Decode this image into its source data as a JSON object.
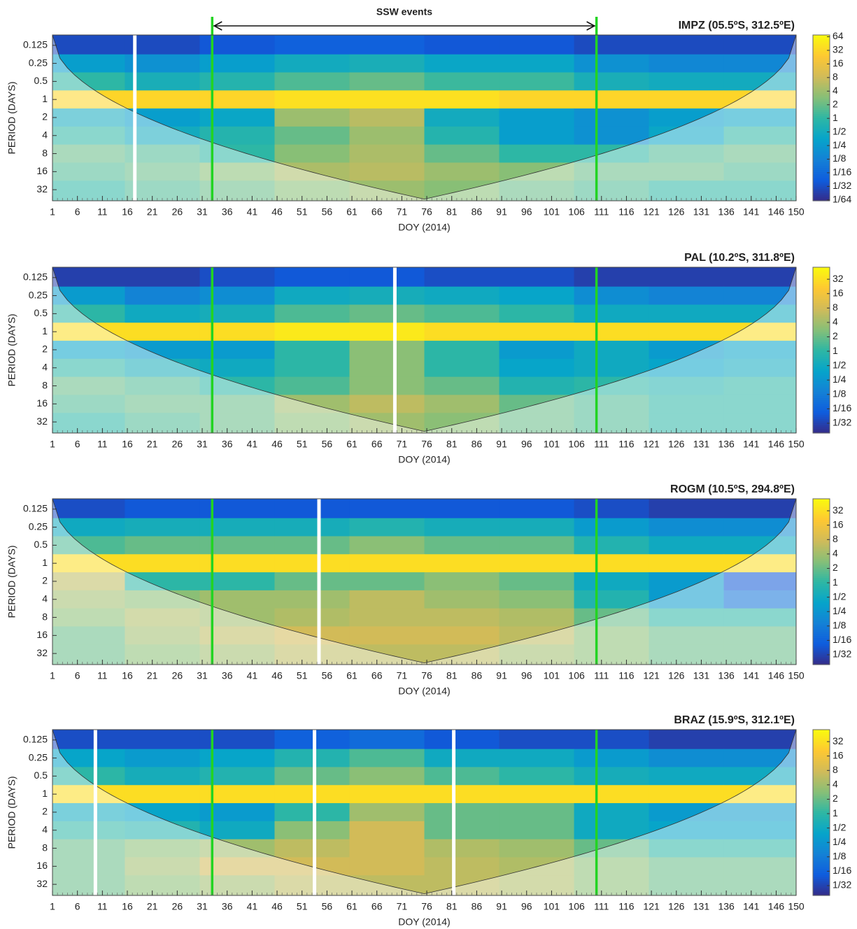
{
  "chart_data": [
    {
      "type": "heatmap",
      "title": "IMPZ (05.5ºS, 312.5ºE)",
      "annotation": "SSW events",
      "x_label": "DOY (2014)",
      "y_label": "PERIOD (DAYS)",
      "x": [
        8,
        23,
        38,
        53,
        68,
        83,
        98,
        113,
        128,
        143
      ],
      "y": [
        0.125,
        0.25,
        0.5,
        1,
        2,
        4,
        8,
        16,
        32
      ],
      "z": [
        [
          0.03,
          0.03,
          0.04,
          0.05,
          0.05,
          0.04,
          0.04,
          0.03,
          0.03,
          0.03
        ],
        [
          0.3,
          0.2,
          0.3,
          0.5,
          0.6,
          0.4,
          0.4,
          0.2,
          0.15,
          0.15
        ],
        [
          1,
          0.6,
          0.8,
          1.5,
          2,
          1.2,
          1.2,
          0.6,
          0.5,
          0.5
        ],
        [
          32,
          32,
          32,
          40,
          40,
          40,
          32,
          32,
          32,
          32
        ],
        [
          0.5,
          0.3,
          0.4,
          4,
          6,
          0.5,
          0.3,
          0.2,
          0.3,
          0.4
        ],
        [
          1,
          0.5,
          0.8,
          2,
          4,
          0.8,
          0.3,
          0.2,
          0.4,
          1
        ],
        [
          2,
          1.5,
          1,
          3,
          5,
          2,
          1,
          1,
          1.5,
          2
        ],
        [
          1.5,
          2,
          3,
          5,
          6,
          4,
          3,
          2,
          2,
          1.5
        ],
        [
          1,
          1.5,
          2,
          3,
          4,
          3,
          2,
          1.5,
          1,
          1
        ]
      ],
      "xlim": [
        1,
        150
      ],
      "xticks": [
        1,
        6,
        11,
        16,
        21,
        26,
        31,
        36,
        41,
        46,
        51,
        56,
        61,
        66,
        71,
        76,
        81,
        86,
        91,
        96,
        101,
        106,
        111,
        116,
        121,
        126,
        131,
        136,
        141,
        146,
        150
      ],
      "ylim": [
        0.084,
        49
      ],
      "yticks": [
        0.125,
        0.25,
        0.5,
        1,
        2,
        4,
        8,
        16,
        32
      ],
      "y_log": true,
      "y_reversed": true,
      "clim": [
        0.015,
        70
      ],
      "cticks": [
        64,
        32,
        16,
        8,
        4,
        2,
        1,
        {
          "value": 0.5,
          "label": "1/2"
        },
        {
          "value": 0.25,
          "label": "1/4"
        },
        {
          "value": 0.125,
          "label": "1/8"
        },
        {
          "value": 0.0625,
          "label": "1/16"
        },
        {
          "value": 0.03125,
          "label": "1/32"
        },
        {
          "value": 0.015625,
          "label": "1/64"
        }
      ],
      "colormap": [
        "#352a87",
        "#0f5cdd",
        "#1481d6",
        "#06a4ca",
        "#2eb7a4",
        "#87bf77",
        "#d1bb59",
        "#fec832",
        "#f9fb0e"
      ],
      "event_lines": [
        33,
        110
      ],
      "event_line_color": "#22d422",
      "data_gaps": [
        17.5
      ]
    },
    {
      "type": "heatmap",
      "title": "PAL (10.2ºS, 311.8ºE)",
      "x_label": "DOY (2014)",
      "y_label": "PERIOD (DAYS)",
      "x": [
        8,
        23,
        38,
        53,
        68,
        83,
        98,
        113,
        128,
        143
      ],
      "y": [
        0.125,
        0.25,
        0.5,
        1,
        2,
        4,
        8,
        16,
        32
      ],
      "z": [
        [
          0.03,
          0.03,
          0.04,
          0.05,
          0.05,
          0.04,
          0.04,
          0.03,
          0.03,
          0.03
        ],
        [
          0.3,
          0.15,
          0.2,
          0.5,
          0.6,
          0.5,
          0.4,
          0.2,
          0.15,
          0.15
        ],
        [
          1,
          0.5,
          0.6,
          1.5,
          2,
          1.5,
          1,
          0.5,
          0.5,
          0.5
        ],
        [
          32,
          32,
          32,
          40,
          40,
          32,
          32,
          32,
          32,
          32
        ],
        [
          0.4,
          0.3,
          0.3,
          1,
          3,
          1,
          0.3,
          0.5,
          0.3,
          0.4
        ],
        [
          1,
          0.6,
          0.5,
          1,
          3,
          1,
          0.4,
          0.5,
          0.4,
          0.5
        ],
        [
          2,
          1.5,
          1,
          1.5,
          3,
          2,
          0.8,
          1,
          0.8,
          1
        ],
        [
          1.5,
          2,
          2,
          4,
          6,
          4,
          2,
          1.5,
          1,
          1
        ],
        [
          1,
          1.5,
          2,
          3,
          4,
          3,
          2,
          1.5,
          1,
          1
        ]
      ],
      "xlim": [
        1,
        150
      ],
      "xticks": [
        1,
        6,
        11,
        16,
        21,
        26,
        31,
        36,
        41,
        46,
        51,
        56,
        61,
        66,
        71,
        76,
        81,
        86,
        91,
        96,
        101,
        106,
        111,
        116,
        121,
        126,
        131,
        136,
        141,
        146,
        150
      ],
      "ylim": [
        0.084,
        49
      ],
      "yticks": [
        0.125,
        0.25,
        0.5,
        1,
        2,
        4,
        8,
        16,
        32
      ],
      "y_log": true,
      "y_reversed": true,
      "clim": [
        0.0195,
        57
      ],
      "cticks": [
        32,
        16,
        8,
        4,
        2,
        1,
        {
          "value": 0.5,
          "label": "1/2"
        },
        {
          "value": 0.25,
          "label": "1/4"
        },
        {
          "value": 0.125,
          "label": "1/8"
        },
        {
          "value": 0.0625,
          "label": "1/16"
        },
        {
          "value": 0.03125,
          "label": "1/32"
        }
      ],
      "colormap": [
        "#352a87",
        "#0f5cdd",
        "#1481d6",
        "#06a4ca",
        "#2eb7a4",
        "#87bf77",
        "#d1bb59",
        "#fec832",
        "#f9fb0e"
      ],
      "event_lines": [
        33,
        110
      ],
      "event_line_color": "#22d422",
      "data_gaps": [
        69.6
      ]
    },
    {
      "type": "heatmap",
      "title": "ROGM (10.5ºS, 294.8ºE)",
      "x_label": "DOY (2014)",
      "y_label": "PERIOD (DAYS)",
      "x": [
        8,
        23,
        38,
        53,
        68,
        83,
        98,
        113,
        128,
        143
      ],
      "y": [
        0.125,
        0.25,
        0.5,
        1,
        2,
        4,
        8,
        16,
        32
      ],
      "z": [
        [
          0.04,
          0.05,
          0.05,
          0.05,
          0.05,
          0.05,
          0.05,
          0.04,
          0.03,
          0.03
        ],
        [
          0.5,
          0.6,
          0.6,
          0.6,
          0.8,
          0.6,
          0.6,
          0.3,
          0.2,
          0.2
        ],
        [
          1.5,
          2,
          2,
          2,
          3,
          2,
          2,
          0.8,
          0.5,
          0.5
        ],
        [
          32,
          32,
          32,
          32,
          32,
          32,
          32,
          32,
          32,
          32
        ],
        [
          6,
          1,
          1,
          2,
          2,
          3,
          2,
          0.5,
          0.3,
          0.05
        ],
        [
          4,
          3,
          4,
          4,
          6,
          4,
          3,
          0.8,
          0.3,
          0.1
        ],
        [
          3,
          5,
          4,
          5,
          6,
          6,
          5,
          2,
          1,
          1
        ],
        [
          2,
          4,
          6,
          8,
          8,
          8,
          6,
          3,
          2,
          2
        ],
        [
          2,
          3,
          4,
          6,
          6,
          6,
          4,
          3,
          2,
          2
        ]
      ],
      "xlim": [
        1,
        150
      ],
      "xticks": [
        1,
        6,
        11,
        16,
        21,
        26,
        31,
        36,
        41,
        46,
        51,
        56,
        61,
        66,
        71,
        76,
        81,
        86,
        91,
        96,
        101,
        106,
        111,
        116,
        121,
        126,
        131,
        136,
        141,
        146,
        150
      ],
      "ylim": [
        0.084,
        49
      ],
      "yticks": [
        0.125,
        0.25,
        0.5,
        1,
        2,
        4,
        8,
        16,
        32
      ],
      "y_log": true,
      "y_reversed": true,
      "clim": [
        0.0195,
        57
      ],
      "cticks": [
        32,
        16,
        8,
        4,
        2,
        1,
        {
          "value": 0.5,
          "label": "1/2"
        },
        {
          "value": 0.25,
          "label": "1/4"
        },
        {
          "value": 0.125,
          "label": "1/8"
        },
        {
          "value": 0.0625,
          "label": "1/16"
        },
        {
          "value": 0.03125,
          "label": "1/32"
        }
      ],
      "colormap": [
        "#352a87",
        "#0f5cdd",
        "#1481d6",
        "#06a4ca",
        "#2eb7a4",
        "#87bf77",
        "#d1bb59",
        "#fec832",
        "#f9fb0e"
      ],
      "event_lines": [
        33,
        110
      ],
      "event_line_color": "#22d422",
      "data_gaps": [
        54.4
      ]
    },
    {
      "type": "heatmap",
      "title": "BRAZ (15.9ºS, 312.1ºE)",
      "x_label": "DOY (2014)",
      "y_label": "PERIOD (DAYS)",
      "x": [
        8,
        23,
        38,
        53,
        68,
        83,
        98,
        113,
        128,
        143
      ],
      "y": [
        0.125,
        0.25,
        0.5,
        1,
        2,
        4,
        8,
        16,
        32
      ],
      "z": [
        [
          0.04,
          0.04,
          0.04,
          0.06,
          0.08,
          0.05,
          0.04,
          0.04,
          0.03,
          0.03
        ],
        [
          0.4,
          0.3,
          0.4,
          0.8,
          1.5,
          0.5,
          0.5,
          0.3,
          0.2,
          0.2
        ],
        [
          1,
          0.6,
          0.8,
          2,
          3,
          1.5,
          1,
          0.6,
          0.5,
          0.5
        ],
        [
          32,
          32,
          32,
          32,
          32,
          32,
          32,
          32,
          32,
          32
        ],
        [
          0.5,
          0.4,
          0.3,
          1,
          4,
          2,
          2,
          0.5,
          0.3,
          0.3
        ],
        [
          1,
          0.8,
          0.5,
          3,
          8,
          2,
          2,
          0.5,
          0.4,
          0.4
        ],
        [
          2,
          3,
          4,
          6,
          8,
          5,
          4,
          2,
          1,
          1
        ],
        [
          2,
          4,
          8,
          8,
          8,
          6,
          5,
          3,
          2,
          2
        ],
        [
          2,
          3,
          4,
          6,
          6,
          6,
          5,
          3,
          2,
          2
        ]
      ],
      "xlim": [
        1,
        150
      ],
      "xticks": [
        1,
        6,
        11,
        16,
        21,
        26,
        31,
        36,
        41,
        46,
        51,
        56,
        61,
        66,
        71,
        76,
        81,
        86,
        91,
        96,
        101,
        106,
        111,
        116,
        121,
        126,
        131,
        136,
        141,
        146,
        150
      ],
      "ylim": [
        0.084,
        49
      ],
      "yticks": [
        0.125,
        0.25,
        0.5,
        1,
        2,
        4,
        8,
        16,
        32
      ],
      "y_log": true,
      "y_reversed": true,
      "clim": [
        0.0195,
        57
      ],
      "cticks": [
        32,
        16,
        8,
        4,
        2,
        1,
        {
          "value": 0.5,
          "label": "1/2"
        },
        {
          "value": 0.25,
          "label": "1/4"
        },
        {
          "value": 0.125,
          "label": "1/8"
        },
        {
          "value": 0.0625,
          "label": "1/16"
        },
        {
          "value": 0.03125,
          "label": "1/32"
        }
      ],
      "colormap": [
        "#352a87",
        "#0f5cdd",
        "#1481d6",
        "#06a4ca",
        "#2eb7a4",
        "#87bf77",
        "#d1bb59",
        "#fec832",
        "#f9fb0e"
      ],
      "event_lines": [
        33,
        110
      ],
      "event_line_color": "#22d422",
      "data_gaps": [
        9.6,
        53.5,
        81.4
      ]
    }
  ]
}
